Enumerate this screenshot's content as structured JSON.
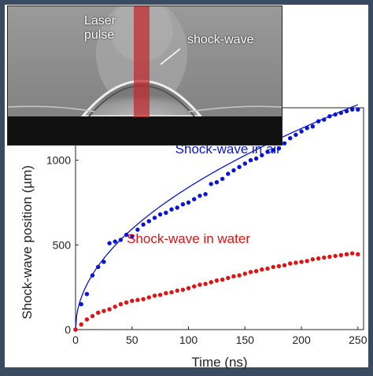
{
  "photo": {
    "laser_label_line1": "Laser",
    "laser_label_line2": "pulse",
    "shock_label": "shock-wave"
  },
  "colors": {
    "air": "#0a14d8",
    "water": "#e01212",
    "laser": "#c0282c",
    "border": "#3a4a60"
  },
  "chart_data": {
    "type": "scatter",
    "xlabel": "Time (ns)",
    "ylabel": "Shock-wave position (µm)",
    "xlim": [
      0,
      255
    ],
    "ylim": [
      0,
      1310
    ],
    "xticks": [
      0,
      50,
      100,
      150,
      200,
      250
    ],
    "yticks": [
      0,
      500,
      1000
    ],
    "grid": false,
    "series": [
      {
        "name": "Shock-wave in air",
        "color": "#0a14d8",
        "label_pos": [
          135,
          1040
        ],
        "points": [
          [
            0,
            0
          ],
          [
            5,
            150
          ],
          [
            10,
            210
          ],
          [
            15,
            320
          ],
          [
            20,
            370
          ],
          [
            25,
            400
          ],
          [
            30,
            510
          ],
          [
            35,
            520
          ],
          [
            40,
            530
          ],
          [
            45,
            560
          ],
          [
            50,
            550
          ],
          [
            55,
            590
          ],
          [
            60,
            620
          ],
          [
            65,
            640
          ],
          [
            70,
            660
          ],
          [
            75,
            680
          ],
          [
            80,
            690
          ],
          [
            85,
            710
          ],
          [
            90,
            720
          ],
          [
            95,
            740
          ],
          [
            100,
            750
          ],
          [
            105,
            770
          ],
          [
            110,
            790
          ],
          [
            115,
            800
          ],
          [
            120,
            860
          ],
          [
            125,
            870
          ],
          [
            130,
            890
          ],
          [
            135,
            920
          ],
          [
            140,
            940
          ],
          [
            145,
            960
          ],
          [
            150,
            980
          ],
          [
            155,
            1000
          ],
          [
            160,
            1010
          ],
          [
            165,
            1030
          ],
          [
            170,
            1050
          ],
          [
            175,
            1060
          ],
          [
            180,
            1070
          ],
          [
            185,
            1100
          ],
          [
            190,
            1130
          ],
          [
            195,
            1150
          ],
          [
            200,
            1170
          ],
          [
            205,
            1190
          ],
          [
            210,
            1200
          ],
          [
            215,
            1230
          ],
          [
            220,
            1240
          ],
          [
            225,
            1260
          ],
          [
            230,
            1270
          ],
          [
            235,
            1280
          ],
          [
            240,
            1290
          ],
          [
            245,
            1300
          ],
          [
            250,
            1300
          ]
        ],
        "fit": {
          "coef": 84,
          "power": 0.5
        }
      },
      {
        "name": "Shock-wave in water",
        "color": "#e01212",
        "label_pos": [
          100,
          510
        ],
        "points": [
          [
            0,
            0
          ],
          [
            5,
            30
          ],
          [
            10,
            60
          ],
          [
            15,
            80
          ],
          [
            20,
            100
          ],
          [
            25,
            110
          ],
          [
            30,
            120
          ],
          [
            35,
            135
          ],
          [
            40,
            150
          ],
          [
            45,
            160
          ],
          [
            50,
            170
          ],
          [
            55,
            175
          ],
          [
            60,
            180
          ],
          [
            65,
            190
          ],
          [
            70,
            200
          ],
          [
            75,
            205
          ],
          [
            80,
            215
          ],
          [
            85,
            220
          ],
          [
            90,
            230
          ],
          [
            95,
            235
          ],
          [
            100,
            245
          ],
          [
            105,
            255
          ],
          [
            110,
            265
          ],
          [
            115,
            270
          ],
          [
            120,
            280
          ],
          [
            125,
            290
          ],
          [
            130,
            295
          ],
          [
            135,
            305
          ],
          [
            140,
            315
          ],
          [
            145,
            320
          ],
          [
            150,
            330
          ],
          [
            155,
            340
          ],
          [
            160,
            345
          ],
          [
            165,
            355
          ],
          [
            170,
            360
          ],
          [
            175,
            370
          ],
          [
            180,
            375
          ],
          [
            185,
            380
          ],
          [
            190,
            390
          ],
          [
            195,
            395
          ],
          [
            200,
            400
          ],
          [
            205,
            405
          ],
          [
            210,
            415
          ],
          [
            215,
            420
          ],
          [
            220,
            425
          ],
          [
            225,
            430
          ],
          [
            230,
            435
          ],
          [
            235,
            440
          ],
          [
            240,
            445
          ],
          [
            245,
            450
          ],
          [
            250,
            445
          ]
        ]
      }
    ]
  }
}
